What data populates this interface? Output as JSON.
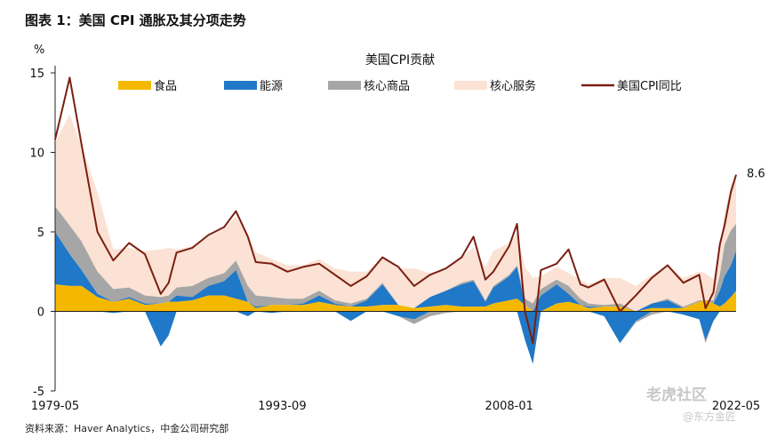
{
  "figure_title": "图表 1：美国 CPI 通胀及其分项走势",
  "source": "资料来源：Haver Analytics，中金公司研究部",
  "watermark": {
    "line1": "老虎社区",
    "line2": "@东方金匠"
  },
  "colors": {
    "food": "#F5B800",
    "energy": "#1F78C8",
    "core_goods": "#A6A6A6",
    "core_services": "#FBE2D4",
    "headline": "#7A1F12"
  },
  "chart_data": {
    "type": "area",
    "title": "美国CPI贡献",
    "ylabel": "%",
    "ylim": [
      -5,
      15
    ],
    "yticks": [
      -5,
      0,
      5,
      10,
      15
    ],
    "xticklabels": [
      "1979-05",
      "1993-09",
      "2008-01",
      "2022-05"
    ],
    "xlim": [
      1979.33,
      2022.33
    ],
    "legend_position": "top",
    "end_label": "8.6",
    "x": [
      1979.33,
      1980.25,
      1981.0,
      1982.0,
      1983.0,
      1984.0,
      1985.0,
      1986.0,
      1986.5,
      1987.0,
      1988.0,
      1989.0,
      1990.0,
      1990.75,
      1991.5,
      1992.0,
      1993.0,
      1994.0,
      1995.0,
      1996.0,
      1997.0,
      1998.0,
      1999.0,
      2000.0,
      2001.0,
      2002.0,
      2003.0,
      2004.0,
      2005.0,
      2005.75,
      2006.5,
      2007.0,
      2008.0,
      2008.5,
      2009.0,
      2009.5,
      2010.0,
      2011.0,
      2011.75,
      2012.5,
      2013.0,
      2014.0,
      2015.0,
      2016.0,
      2017.0,
      2018.0,
      2019.0,
      2020.0,
      2020.4,
      2020.9,
      2021.3,
      2021.6,
      2022.0,
      2022.33
    ],
    "series": [
      {
        "name": "食品",
        "values": [
          1.7,
          1.6,
          1.6,
          0.9,
          0.6,
          0.8,
          0.4,
          0.5,
          0.6,
          0.6,
          0.7,
          1.0,
          1.0,
          0.8,
          0.6,
          0.2,
          0.4,
          0.4,
          0.4,
          0.6,
          0.4,
          0.3,
          0.3,
          0.4,
          0.4,
          0.2,
          0.3,
          0.4,
          0.3,
          0.3,
          0.3,
          0.5,
          0.7,
          0.8,
          0.4,
          0.0,
          0.0,
          0.5,
          0.6,
          0.4,
          0.2,
          0.3,
          0.3,
          0.0,
          0.2,
          0.2,
          0.2,
          0.6,
          0.7,
          0.5,
          0.3,
          0.5,
          0.9,
          1.3
        ]
      },
      {
        "name": "能源",
        "values": [
          3.3,
          2.0,
          1.0,
          0.2,
          -0.1,
          0.1,
          0.1,
          -2.2,
          -1.5,
          0.4,
          0.2,
          0.6,
          0.9,
          1.8,
          -0.3,
          0.1,
          -0.1,
          0.0,
          0.1,
          0.4,
          0.1,
          -0.6,
          0.4,
          1.3,
          -0.3,
          -0.5,
          0.6,
          0.9,
          1.4,
          1.6,
          0.3,
          1.0,
          1.5,
          2.0,
          -1.8,
          -3.3,
          1.0,
          1.2,
          0.5,
          0.0,
          0.1,
          -0.3,
          -2.0,
          -0.6,
          0.3,
          0.5,
          -0.2,
          -0.5,
          -1.8,
          -0.6,
          1.0,
          1.7,
          2.0,
          2.5
        ]
      },
      {
        "name": "核心商品",
        "values": [
          1.6,
          1.8,
          1.8,
          1.4,
          0.8,
          0.6,
          0.5,
          0.4,
          0.4,
          0.5,
          0.7,
          0.5,
          0.5,
          0.6,
          1.0,
          0.7,
          0.5,
          0.4,
          0.3,
          0.3,
          0.2,
          0.2,
          0.1,
          0.1,
          0.0,
          -0.3,
          -0.3,
          -0.1,
          0.1,
          0.1,
          0.1,
          0.1,
          0.1,
          0.1,
          0.4,
          0.5,
          0.4,
          0.3,
          0.5,
          0.4,
          0.2,
          0.1,
          0.2,
          -0.1,
          -0.2,
          0.1,
          0.1,
          0.1,
          -0.2,
          0.2,
          1.0,
          2.0,
          2.2,
          1.7
        ]
      },
      {
        "name": "核心服务",
        "values": [
          4.0,
          7.0,
          6.0,
          5.0,
          2.5,
          2.5,
          2.8,
          3.0,
          3.0,
          2.4,
          2.5,
          2.6,
          2.8,
          2.8,
          3.2,
          2.7,
          2.4,
          2.1,
          2.1,
          2.0,
          2.0,
          2.0,
          1.7,
          1.6,
          2.3,
          2.5,
          1.5,
          1.3,
          1.6,
          2.0,
          2.1,
          2.2,
          2.0,
          2.0,
          2.0,
          1.6,
          0.8,
          0.8,
          0.8,
          1.2,
          1.2,
          1.7,
          1.6,
          1.6,
          1.8,
          2.1,
          1.8,
          1.8,
          1.7,
          1.3,
          1.8,
          2.0,
          2.8,
          3.1
        ]
      },
      {
        "name": "美国CPI同比",
        "type": "line",
        "values": [
          10.8,
          14.7,
          10.5,
          5.0,
          3.2,
          4.3,
          3.6,
          1.1,
          1.8,
          3.7,
          4.0,
          4.8,
          5.3,
          6.3,
          4.7,
          3.1,
          3.0,
          2.5,
          2.8,
          3.0,
          2.3,
          1.6,
          2.2,
          3.4,
          2.8,
          1.6,
          2.3,
          2.7,
          3.4,
          4.7,
          2.0,
          2.5,
          4.1,
          5.5,
          0.0,
          -2.0,
          2.6,
          3.0,
          3.9,
          1.7,
          1.5,
          2.0,
          0.0,
          1.0,
          2.1,
          2.9,
          1.8,
          2.3,
          0.2,
          1.2,
          4.2,
          5.4,
          7.5,
          8.6
        ]
      }
    ]
  }
}
